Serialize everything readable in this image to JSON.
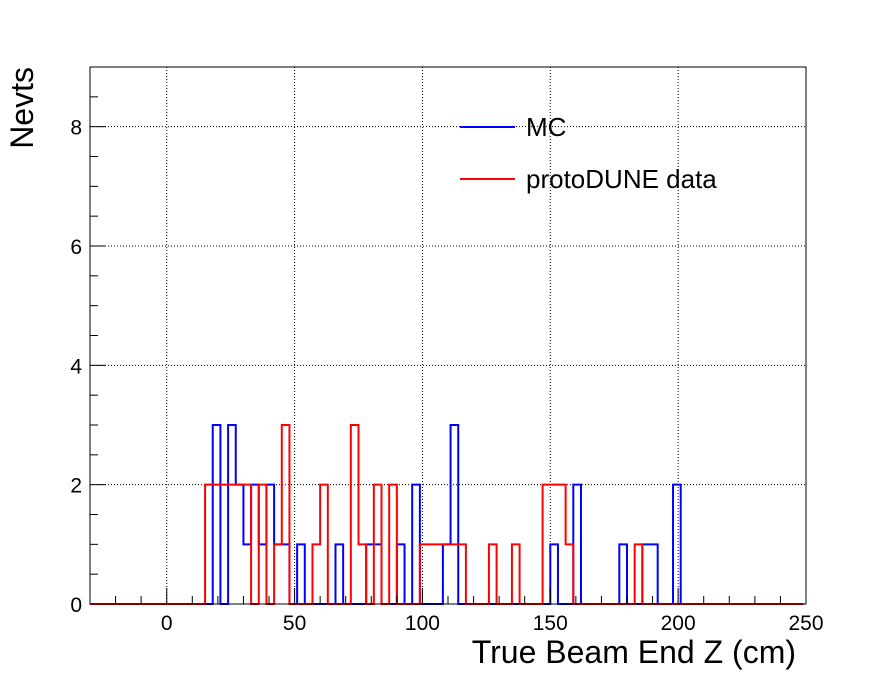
{
  "chart_data": {
    "type": "line",
    "style": "step-histogram",
    "xlabel": "True Beam End Z (cm)",
    "ylabel": "Nevts",
    "xlim": [
      -30,
      250
    ],
    "ylim": [
      0,
      9
    ],
    "xticks": [
      0,
      50,
      100,
      150,
      200,
      250
    ],
    "yticks": [
      0,
      2,
      4,
      6,
      8
    ],
    "grid": true,
    "legend_position": "top-right",
    "bin_width": 3,
    "series": [
      {
        "name": "MC",
        "color": "#0000ff",
        "x": [
          -30,
          -27,
          -24,
          -21,
          -18,
          -15,
          -12,
          -9,
          -6,
          -3,
          0,
          3,
          6,
          9,
          12,
          15,
          18,
          21,
          24,
          27,
          30,
          33,
          36,
          39,
          42,
          45,
          48,
          51,
          54,
          57,
          60,
          63,
          66,
          69,
          72,
          75,
          78,
          81,
          84,
          87,
          90,
          93,
          96,
          99,
          102,
          105,
          108,
          111,
          114,
          117,
          120,
          123,
          126,
          129,
          132,
          135,
          138,
          141,
          144,
          147,
          150,
          153,
          156,
          159,
          162,
          165,
          168,
          171,
          174,
          177,
          180,
          183,
          186,
          189,
          192,
          195,
          198,
          201,
          204,
          207,
          210,
          213,
          216,
          219,
          222,
          225,
          228,
          231,
          234,
          237,
          240,
          243,
          246
        ],
        "values": [
          0,
          0,
          0,
          0,
          0,
          0,
          0,
          0,
          0,
          0,
          0,
          0,
          0,
          0,
          0,
          0,
          3,
          0,
          3,
          2,
          1,
          2,
          1,
          2,
          1,
          1,
          0,
          1,
          0,
          0,
          0,
          0,
          1,
          0,
          0,
          0,
          1,
          1,
          0,
          0,
          1,
          0,
          2,
          0,
          0,
          0,
          1,
          3,
          0,
          0,
          0,
          0,
          0,
          0,
          0,
          0,
          0,
          0,
          0,
          0,
          1,
          0,
          0,
          2,
          0,
          0,
          0,
          0,
          0,
          1,
          0,
          0,
          1,
          1,
          0,
          0,
          2,
          0,
          0,
          0,
          0,
          0,
          0,
          0,
          0,
          0,
          0,
          0,
          0,
          0,
          0,
          0,
          0
        ]
      },
      {
        "name": "protoDUNE data",
        "color": "#ff0000",
        "x": [
          -30,
          -27,
          -24,
          -21,
          -18,
          -15,
          -12,
          -9,
          -6,
          -3,
          0,
          3,
          6,
          9,
          12,
          15,
          18,
          21,
          24,
          27,
          30,
          33,
          36,
          39,
          42,
          45,
          48,
          51,
          54,
          57,
          60,
          63,
          66,
          69,
          72,
          75,
          78,
          81,
          84,
          87,
          90,
          93,
          96,
          99,
          102,
          105,
          108,
          111,
          114,
          117,
          120,
          123,
          126,
          129,
          132,
          135,
          138,
          141,
          144,
          147,
          150,
          153,
          156,
          159,
          162,
          165,
          168,
          171,
          174,
          177,
          180,
          183,
          186,
          189,
          192,
          195,
          198,
          201,
          204,
          207,
          210,
          213,
          216,
          219,
          222,
          225,
          228,
          231,
          234,
          237,
          240,
          243,
          246
        ],
        "values": [
          0,
          0,
          0,
          0,
          0,
          0,
          0,
          0,
          0,
          0,
          0,
          0,
          0,
          0,
          0,
          2,
          2,
          2,
          2,
          2,
          2,
          0,
          2,
          0,
          1,
          3,
          0,
          0,
          0,
          1,
          2,
          0,
          0,
          0,
          3,
          1,
          0,
          2,
          0,
          2,
          0,
          0,
          0,
          1,
          1,
          1,
          1,
          1,
          1,
          0,
          0,
          0,
          1,
          0,
          0,
          1,
          0,
          0,
          0,
          2,
          2,
          2,
          1,
          0,
          0,
          0,
          0,
          0,
          0,
          0,
          0,
          1,
          0,
          0,
          0,
          0,
          0,
          0,
          0,
          0,
          0,
          0,
          0,
          0,
          0,
          0,
          0,
          0,
          0,
          0,
          0,
          0,
          0
        ]
      }
    ]
  }
}
